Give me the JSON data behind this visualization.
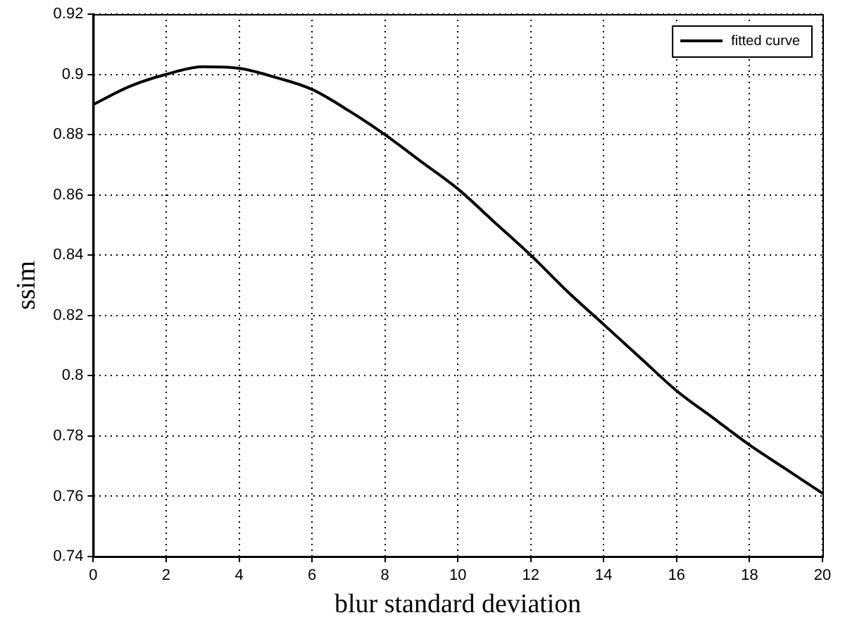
{
  "chart_data": {
    "type": "line",
    "xlabel": "blur standard deviation",
    "ylabel": "ssim",
    "x": [
      0,
      1,
      2,
      3,
      4,
      5,
      6,
      7,
      8,
      9,
      10,
      11,
      12,
      13,
      14,
      15,
      16,
      17,
      18,
      19,
      20
    ],
    "series": [
      {
        "name": "fitted curve",
        "color": "#000000",
        "values": [
          0.89,
          0.896,
          0.9,
          0.9025,
          0.902,
          0.899,
          0.895,
          0.888,
          0.88,
          0.871,
          0.862,
          0.851,
          0.84,
          0.828,
          0.817,
          0.806,
          0.795,
          0.786,
          0.777,
          0.769,
          0.761
        ]
      }
    ],
    "xlim": [
      0,
      20
    ],
    "xticks": [
      0,
      2,
      4,
      6,
      8,
      10,
      12,
      14,
      16,
      18,
      20
    ],
    "ylim": [
      0.74,
      0.92
    ],
    "yticks": [
      0.74,
      0.76,
      0.78,
      0.8,
      0.82,
      0.84,
      0.86,
      0.88,
      0.9,
      0.92
    ],
    "grid": true,
    "legend": "top right",
    "marker": "none",
    "line_style": "solid"
  }
}
